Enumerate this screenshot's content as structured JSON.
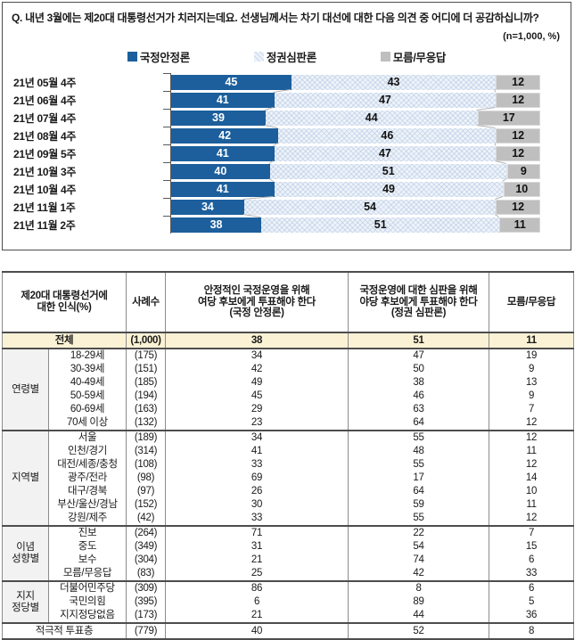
{
  "question": "Q. 내년 3월에는 제20대 대통령선거가 치러지는데요. 선생님께서는 차기 대선에 대한 다음 의견 중 어디에 더 공감하십니까?",
  "sample_note": "(n=1,000, %)",
  "colors": {
    "stable_blue": "#1C5F9C",
    "judgment_lightblue": "#EEF3FA",
    "dontknow_gray": "#BFBFBF",
    "total_row_yellow": "#FBF2D5",
    "group_cell_gray": "#F2F2F2"
  },
  "chart_data": {
    "type": "bar",
    "stacked": true,
    "orientation": "horizontal",
    "title": "",
    "xlabel": "",
    "ylabel": "",
    "xlim": [
      0,
      100
    ],
    "legend_position": "top",
    "grid": false,
    "categories": [
      "21년 05월 4주",
      "21년 06월 4주",
      "21년 07월 4주",
      "21년 08월 4주",
      "21년 09월 5주",
      "21년 10월 3주",
      "21년 10월 4주",
      "21년 11월 1주",
      "21년 11월 2주"
    ],
    "series": [
      {
        "name": "국정안정론",
        "color": "#1C5F9C",
        "values": [
          45,
          41,
          39,
          42,
          41,
          40,
          41,
          34,
          38
        ]
      },
      {
        "name": "정권심판론",
        "color": "#EEF3FA",
        "values": [
          43,
          47,
          44,
          46,
          47,
          51,
          49,
          54,
          51
        ]
      },
      {
        "name": "모름/무응답",
        "color": "#BFBFBF",
        "values": [
          12,
          12,
          17,
          12,
          12,
          9,
          10,
          12,
          11
        ]
      }
    ],
    "layout_hints": {
      "first_series_axis_min": 17,
      "first_series_axis_max": 103,
      "other_series_axis": [
        0,
        100
      ]
    }
  },
  "table": {
    "header": {
      "col_perception": "제20대 대통령선거에\n대한 인식(%)",
      "col_n": "사례수",
      "col_stable": "안정적인 국정운영을 위해\n여당 후보에게 투표해야 한다\n(국정 안정론)",
      "col_judgment": "국정운영에 대한 심판을 위해\n야당 후보에게 투표해야 한다\n(정권 심판론)",
      "col_dk": "모름/무응답"
    },
    "total_row": {
      "label": "전체",
      "n": "(1,000)",
      "values": [
        38,
        51,
        11
      ]
    },
    "groups": [
      {
        "name": "연령별",
        "rows": [
          [
            "18-29세",
            "(175)",
            34,
            47,
            19
          ],
          [
            "30-39세",
            "(151)",
            42,
            50,
            9
          ],
          [
            "40-49세",
            "(185)",
            49,
            38,
            13
          ],
          [
            "50-59세",
            "(194)",
            45,
            46,
            9
          ],
          [
            "60-69세",
            "(163)",
            29,
            63,
            7
          ],
          [
            "70세 이상",
            "(132)",
            23,
            64,
            12
          ]
        ]
      },
      {
        "name": "지역별",
        "rows": [
          [
            "서울",
            "(189)",
            34,
            55,
            12
          ],
          [
            "인천/경기",
            "(314)",
            41,
            48,
            11
          ],
          [
            "대전/세종/충청",
            "(108)",
            33,
            55,
            12
          ],
          [
            "광주/전라",
            "(98)",
            69,
            17,
            14
          ],
          [
            "대구/경북",
            "(97)",
            26,
            64,
            10
          ],
          [
            "부산/울산/경남",
            "(152)",
            30,
            59,
            11
          ],
          [
            "강원/제주",
            "(42)",
            33,
            55,
            12
          ]
        ]
      },
      {
        "name": "이념\n성향별",
        "rows": [
          [
            "진보",
            "(264)",
            71,
            22,
            7
          ],
          [
            "중도",
            "(349)",
            31,
            54,
            15
          ],
          [
            "보수",
            "(304)",
            21,
            74,
            6
          ],
          [
            "모름/무응답",
            "(83)",
            25,
            42,
            33
          ]
        ]
      },
      {
        "name": "지지\n정당별",
        "rows": [
          [
            "더불어민주당",
            "(309)",
            86,
            8,
            6
          ],
          [
            "국민의힘",
            "(395)",
            6,
            89,
            5
          ],
          [
            "지지정당없음",
            "(173)",
            21,
            44,
            36
          ]
        ]
      }
    ],
    "footer_row": {
      "label": "적극적 투표층",
      "n": "(779)",
      "values": [
        40,
        52,
        8
      ]
    }
  }
}
